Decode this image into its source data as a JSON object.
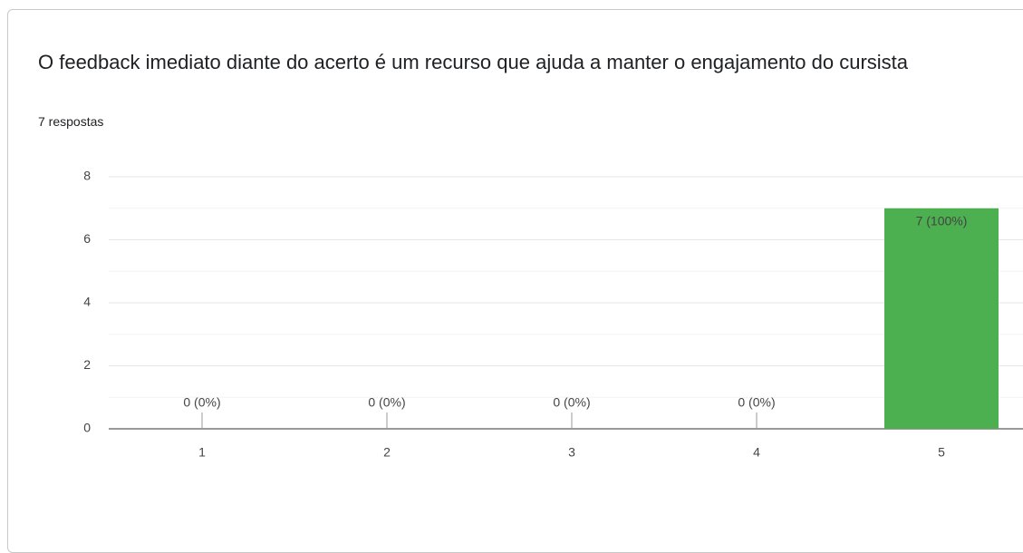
{
  "chart_data": {
    "type": "bar",
    "title": "O feedback imediato diante do acerto é um recurso que ajuda a manter o engajamento do cursista",
    "subtitle": "7 respostas",
    "categories": [
      "1",
      "2",
      "3",
      "4",
      "5"
    ],
    "values": [
      0,
      0,
      0,
      0,
      7
    ],
    "value_labels": [
      "0 (0%)",
      "0 (0%)",
      "0 (0%)",
      "0 (0%)",
      "7 (100%)"
    ],
    "color": "#4caf50",
    "ylim": [
      0,
      8
    ],
    "yticks": [
      0,
      2,
      4,
      6,
      8
    ],
    "minor_yticks": [
      1,
      3,
      5,
      7
    ],
    "grid": true
  }
}
